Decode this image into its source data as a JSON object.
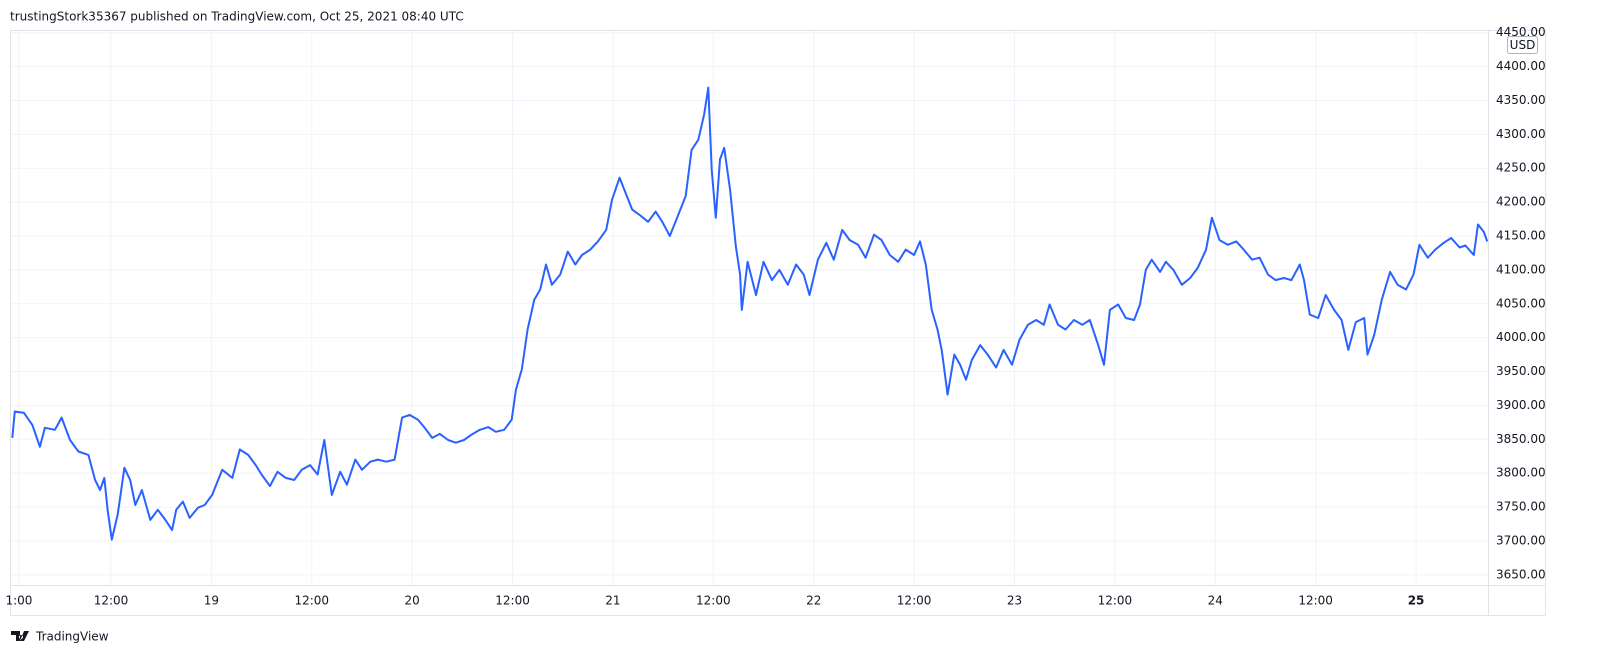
{
  "header": "trustingStork35367 published on TradingView.com, Oct 25, 2021 08:40 UTC",
  "currency": "USD",
  "footer": "TradingView",
  "chart_data": {
    "type": "line",
    "color": "#2962ff",
    "grid": true,
    "x": [
      0.2,
      0.5,
      1.6,
      2.6,
      3.5,
      4.1,
      5.3,
      6.1,
      7.1,
      8.1,
      9.3,
      10.1,
      10.7,
      11.2,
      11.6,
      12.1,
      12.8,
      13.6,
      14.3,
      14.9,
      15.7,
      16.7,
      17.6,
      18.5,
      19.3,
      19.8,
      20.6,
      21.4,
      22.4,
      23.2,
      24.1,
      24.8,
      25.3,
      26.5,
      27.4,
      28.4,
      29.3,
      30.0,
      31.0,
      31.9,
      32.9,
      33.9,
      34.8,
      35.8,
      36.7,
      37.5,
      38.4,
      39.4,
      40.2,
      41.2,
      42.0,
      43.0,
      43.9,
      44.9,
      45.9,
      46.8,
      47.7,
      48.7,
      49.5,
      50.4,
      51.3,
      52.3,
      53.2,
      54.2,
      55.1,
      56.1,
      57.1,
      58.0,
      59.0,
      59.9,
      60.4,
      61.1,
      61.8,
      62.6,
      63.3,
      64.0,
      64.7,
      65.7,
      66.6,
      67.5,
      68.3,
      69.3,
      70.2,
      71.2,
      71.9,
      72.8,
      73.6,
      74.3,
      75.2,
      76.2,
      77.1,
      77.9,
      78.8,
      79.8,
      80.7,
      81.4,
      82.2,
      82.9,
      83.4,
      83.8,
      84.3,
      84.8,
      85.3,
      86.0,
      86.7,
      87.2,
      87.4,
      88.1,
      89.1,
      90.0,
      91.0,
      91.9,
      92.9,
      93.9,
      94.8,
      95.5,
      96.5,
      97.5,
      98.4,
      99.4,
      100.3,
      101.3,
      102.2,
      103.2,
      104.1,
      105.1,
      106.1,
      107.0,
      108.0,
      108.7,
      109.4,
      110.1,
      110.8,
      111.3,
      112.0,
      112.8,
      113.5,
      114.2,
      114.9,
      115.9,
      116.8,
      117.8,
      118.7,
      119.7,
      120.6,
      121.6,
      122.6,
      123.5,
      124.2,
      125.2,
      126.1,
      127.1,
      128.1,
      129.0,
      130.0,
      130.7,
      131.4,
      132.4,
      133.3,
      134.3,
      135.0,
      135.7,
      136.4,
      137.4,
      138.1,
      139.0,
      140.0,
      141.0,
      141.9,
      142.9,
      143.6,
      144.5,
      145.5,
      146.5,
      147.4,
      148.4,
      149.3,
      150.3,
      151.2,
      152.2,
      153.1,
      154.1,
      154.6,
      155.3,
      156.3,
      157.2,
      158.2,
      159.1,
      159.9,
      160.8,
      161.8,
      162.2,
      163.0,
      163.9,
      164.9,
      165.8,
      166.8,
      167.7,
      168.4,
      169.4,
      170.3,
      171.3,
      172.2,
      173.2,
      173.9,
      174.9,
      175.4,
      176.1,
      176.5
    ],
    "values": [
      3852,
      3891,
      3889,
      3871,
      3839,
      3867,
      3864,
      3882,
      3849,
      3832,
      3827,
      3790,
      3775,
      3793,
      3746,
      3702,
      3739,
      3808,
      3790,
      3753,
      3775,
      3731,
      3746,
      3731,
      3716,
      3746,
      3758,
      3734,
      3749,
      3753,
      3768,
      3790,
      3805,
      3793,
      3835,
      3827,
      3812,
      3798,
      3781,
      3802,
      3793,
      3790,
      3805,
      3812,
      3798,
      3849,
      3768,
      3802,
      3783,
      3820,
      3805,
      3817,
      3820,
      3817,
      3820,
      3882,
      3886,
      3879,
      3867,
      3852,
      3858,
      3849,
      3845,
      3849,
      3857,
      3864,
      3868,
      3861,
      3864,
      3879,
      3923,
      3953,
      4012,
      4056,
      4071,
      4108,
      4078,
      4093,
      4127,
      4108,
      4122,
      4130,
      4142,
      4159,
      4204,
      4236,
      4211,
      4189,
      4181,
      4171,
      4186,
      4171,
      4150,
      4181,
      4209,
      4277,
      4292,
      4329,
      4369,
      4248,
      4177,
      4263,
      4280,
      4218,
      4134,
      4093,
      4041,
      4112,
      4063,
      4112,
      4085,
      4100,
      4078,
      4108,
      4093,
      4063,
      4115,
      4140,
      4115,
      4159,
      4144,
      4137,
      4118,
      4152,
      4144,
      4122,
      4112,
      4130,
      4122,
      4142,
      4108,
      4041,
      4012,
      3982,
      3916,
      3975,
      3960,
      3938,
      3967,
      3989,
      3975,
      3956,
      3982,
      3960,
      3997,
      4019,
      4026,
      4019,
      4049,
      4019,
      4012,
      4026,
      4019,
      4026,
      3989,
      3960,
      4041,
      4049,
      4029,
      4026,
      4049,
      4100,
      4115,
      4097,
      4112,
      4100,
      4078,
      4088,
      4103,
      4130,
      4177,
      4144,
      4137,
      4142,
      4130,
      4115,
      4118,
      4093,
      4085,
      4088,
      4085,
      4108,
      4085,
      4034,
      4029,
      4063,
      4041,
      4026,
      3982,
      4023,
      4029,
      3975,
      4004,
      4056,
      4097,
      4078,
      4071,
      4093,
      4137,
      4118,
      4130,
      4140,
      4147,
      4133,
      4136,
      4122,
      4167,
      4156,
      4142
    ],
    "xlim": [
      0,
      176.6
    ],
    "xticks": [
      {
        "value": 1,
        "label": "1:00"
      },
      {
        "value": 12,
        "label": "12:00"
      },
      {
        "value": 24,
        "label": "19"
      },
      {
        "value": 36,
        "label": "12:00"
      },
      {
        "value": 48,
        "label": "20"
      },
      {
        "value": 60,
        "label": "12:00"
      },
      {
        "value": 72,
        "label": "21"
      },
      {
        "value": 84,
        "label": "12:00"
      },
      {
        "value": 96,
        "label": "22"
      },
      {
        "value": 108,
        "label": "12:00"
      },
      {
        "value": 120,
        "label": "23"
      },
      {
        "value": 132,
        "label": "12:00"
      },
      {
        "value": 144,
        "label": "24"
      },
      {
        "value": 156,
        "label": "12:00"
      },
      {
        "value": 168,
        "label": "25"
      }
    ],
    "ylim": [
      3635,
      4454
    ],
    "yticks": [
      {
        "value": 3650,
        "label": "3650.00"
      },
      {
        "value": 3700,
        "label": "3700.00"
      },
      {
        "value": 3750,
        "label": "3750.00"
      },
      {
        "value": 3800,
        "label": "3800.00"
      },
      {
        "value": 3850,
        "label": "3850.00"
      },
      {
        "value": 3900,
        "label": "3900.00"
      },
      {
        "value": 3950,
        "label": "3950.00"
      },
      {
        "value": 4000,
        "label": "4000.00"
      },
      {
        "value": 4050,
        "label": "4050.00"
      },
      {
        "value": 4100,
        "label": "4100.00"
      },
      {
        "value": 4150,
        "label": "4150.00"
      },
      {
        "value": 4200,
        "label": "4200.00"
      },
      {
        "value": 4250,
        "label": "4250.00"
      },
      {
        "value": 4300,
        "label": "4300.00"
      },
      {
        "value": 4350,
        "label": "4350.00"
      },
      {
        "value": 4400,
        "label": "4400.00"
      },
      {
        "value": 4450,
        "label": "4450.00"
      }
    ]
  }
}
